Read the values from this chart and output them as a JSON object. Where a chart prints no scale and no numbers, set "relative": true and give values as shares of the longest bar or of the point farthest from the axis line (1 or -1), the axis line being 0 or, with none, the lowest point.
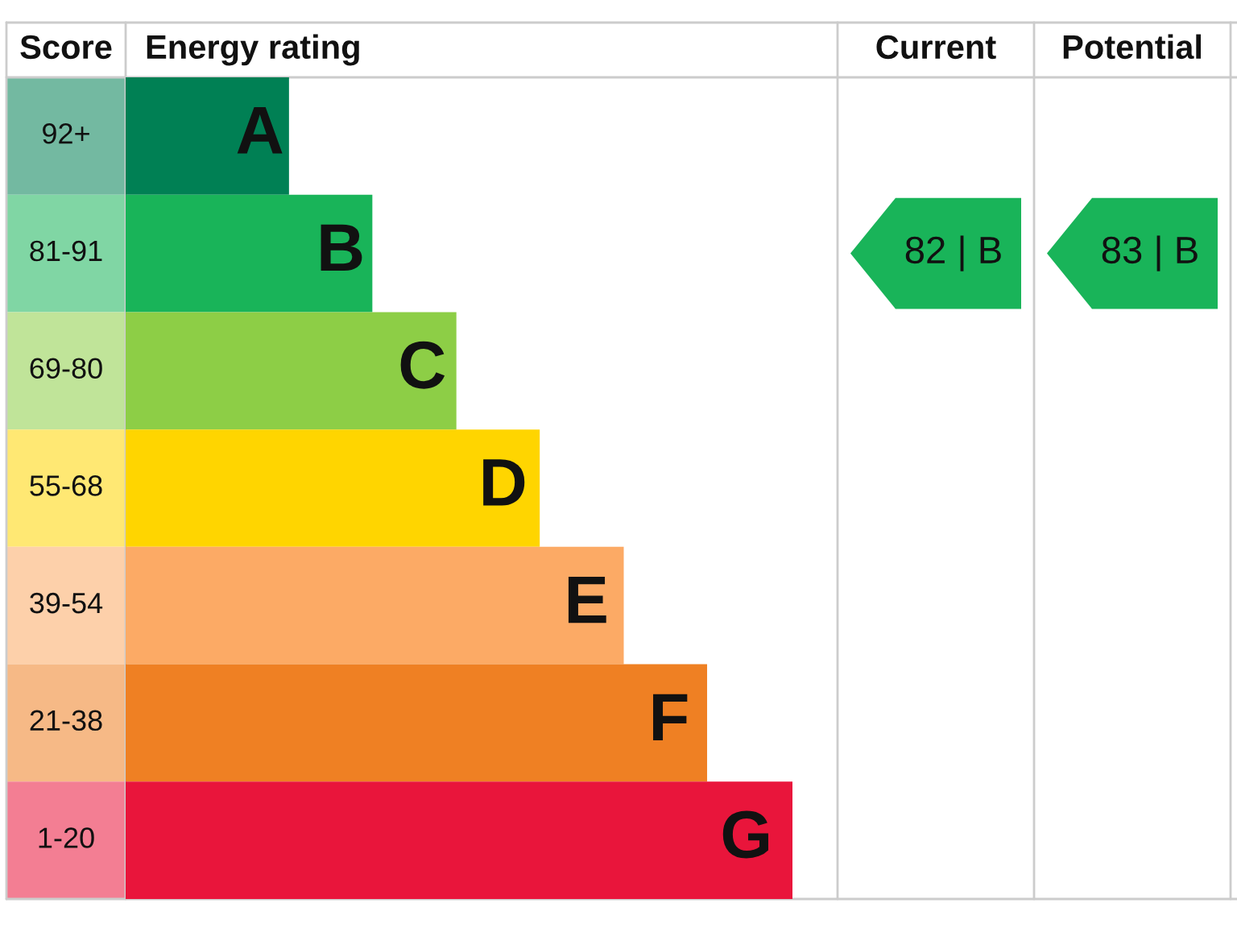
{
  "chart_data": {
    "type": "bar",
    "orientation": "horizontal",
    "relative": true,
    "title": "Energy rating",
    "categories": [
      "A",
      "B",
      "C",
      "D",
      "E",
      "F",
      "G"
    ],
    "values": [
      0.245,
      0.37,
      0.496,
      0.621,
      0.747,
      0.872,
      1
    ],
    "colors": [
      "#008054",
      "#19b459",
      "#8dce46",
      "#ffd500",
      "#fcaa65",
      "#ef8023",
      "#e9153b"
    ],
    "annotations": [
      "Score",
      "Current",
      "Potential",
      "92+",
      "81-91",
      "69-80",
      "55-68",
      "39-54",
      "21-38",
      "1-20",
      "82 | B",
      "83 | B"
    ]
  }
}
